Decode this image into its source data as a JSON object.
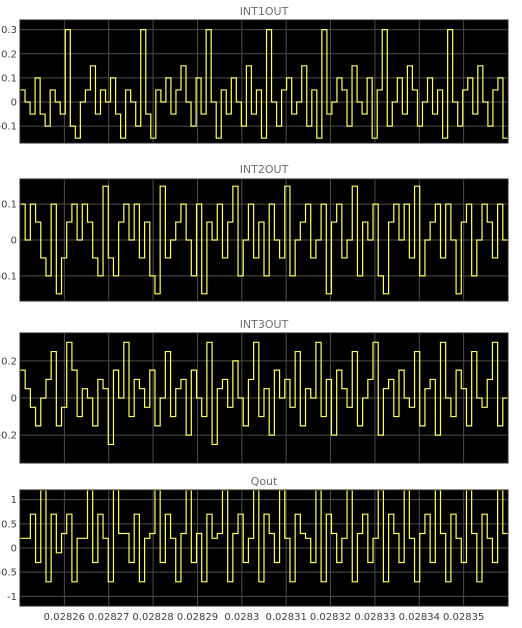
{
  "colors": {
    "background": "#ffffff",
    "plot_background": "#000000",
    "grid": "#4d4d4d",
    "signal": "#ffff66",
    "title": "#6e6e6e",
    "tick_label": "#404040"
  },
  "chart_data": [
    {
      "type": "line",
      "step": true,
      "title": "INT1OUT",
      "xlim": [
        0.02825,
        0.02836
      ],
      "ylim": [
        -0.17,
        0.34
      ],
      "yticks": [
        -0.1,
        0,
        0.1,
        0.2,
        0.3
      ],
      "ytick_labels": [
        "-0.1",
        "0",
        "0.1",
        "0.2",
        "0.3"
      ],
      "grid": true,
      "series": [
        {
          "y": [
            0.05,
            0.0,
            -0.05,
            0.1,
            -0.05,
            -0.1,
            0.05,
            0.0,
            -0.05,
            0.3,
            -0.1,
            -0.15,
            0.0,
            0.05,
            0.15,
            -0.05,
            0.05,
            0.0,
            0.1,
            -0.05,
            -0.15,
            0.05,
            0.0,
            -0.1,
            0.3,
            -0.05,
            -0.15,
            0.05,
            0.0,
            0.1,
            -0.05,
            0.05,
            0.15,
            0.0,
            -0.1,
            0.1,
            -0.05,
            0.3,
            0.0,
            -0.15,
            0.05,
            -0.05,
            0.1,
            0.0,
            -0.1,
            0.15,
            -0.05,
            0.05,
            -0.15,
            0.3,
            0.0,
            -0.1,
            0.05,
            0.1,
            -0.05,
            0.0,
            0.15,
            -0.1,
            0.05,
            -0.15,
            0.3,
            -0.05,
            0.0,
            0.1,
            0.05,
            -0.1,
            0.15,
            0.0,
            -0.05,
            0.1,
            -0.15,
            0.05,
            0.3,
            -0.1,
            0.0,
            0.1,
            -0.05,
            0.15,
            0.05,
            -0.1,
            0.0,
            0.1,
            -0.05,
            0.05,
            -0.15,
            0.3,
            0.0,
            -0.1,
            0.05,
            0.1,
            -0.05,
            0.15,
            0.0,
            -0.1,
            0.05,
            0.1,
            -0.15
          ]
        }
      ]
    },
    {
      "type": "line",
      "step": true,
      "title": "INT2OUT",
      "xlim": [
        0.02825,
        0.02836
      ],
      "ylim": [
        -0.17,
        0.17
      ],
      "yticks": [
        -0.1,
        0,
        0.1
      ],
      "ytick_labels": [
        "-0.1",
        "0",
        "0.1"
      ],
      "grid": true,
      "series": [
        {
          "y": [
            0.1,
            0.0,
            0.1,
            0.05,
            -0.05,
            -0.1,
            0.1,
            -0.15,
            -0.05,
            0.05,
            0.1,
            0.0,
            0.1,
            0.05,
            -0.05,
            -0.1,
            0.15,
            -0.05,
            -0.1,
            0.05,
            0.1,
            0.0,
            0.1,
            -0.05,
            0.05,
            -0.1,
            -0.15,
            0.15,
            -0.05,
            0.0,
            0.05,
            0.1,
            0.0,
            -0.1,
            0.1,
            -0.15,
            0.05,
            0.0,
            0.1,
            -0.05,
            0.05,
            0.15,
            -0.1,
            0.0,
            0.1,
            -0.05,
            0.05,
            -0.1,
            0.1,
            0.0,
            -0.05,
            0.15,
            -0.1,
            0.0,
            0.05,
            0.1,
            -0.05,
            0.0,
            0.1,
            -0.15,
            0.05,
            0.1,
            -0.05,
            0.0,
            0.15,
            -0.1,
            0.05,
            0.0,
            0.1,
            -0.1,
            -0.15,
            0.05,
            0.1,
            0.0,
            0.1,
            -0.05,
            0.15,
            -0.1,
            0.0,
            0.05,
            0.1,
            -0.05,
            0.1,
            0.0,
            -0.15,
            0.05,
            0.1,
            -0.1,
            0.0,
            0.1,
            0.05,
            -0.05,
            0.1,
            0.0
          ]
        }
      ]
    },
    {
      "type": "line",
      "step": true,
      "title": "INT3OUT",
      "xlim": [
        0.02825,
        0.02836
      ],
      "ylim": [
        -0.35,
        0.35
      ],
      "yticks": [
        -0.2,
        0,
        0.2
      ],
      "ytick_labels": [
        "-0.2",
        "0",
        "0.2"
      ],
      "grid": true,
      "series": [
        {
          "y": [
            0.15,
            0.05,
            -0.05,
            -0.15,
            0.0,
            0.1,
            0.25,
            -0.15,
            -0.05,
            0.3,
            0.15,
            -0.1,
            0.05,
            0.0,
            -0.15,
            0.1,
            0.05,
            -0.25,
            0.15,
            0.0,
            0.3,
            -0.1,
            0.1,
            0.05,
            -0.05,
            0.15,
            -0.15,
            0.0,
            0.25,
            -0.1,
            0.05,
            0.1,
            -0.2,
            0.15,
            0.0,
            -0.1,
            0.3,
            -0.25,
            0.05,
            0.1,
            -0.05,
            0.2,
            0.0,
            -0.15,
            0.1,
            0.3,
            -0.1,
            0.05,
            -0.2,
            0.15,
            0.0,
            0.1,
            -0.05,
            0.25,
            -0.15,
            0.05,
            0.0,
            0.3,
            -0.1,
            0.1,
            -0.2,
            0.15,
            0.05,
            -0.05,
            0.25,
            -0.15,
            0.0,
            0.1,
            0.3,
            -0.2,
            0.05,
            0.1,
            -0.1,
            0.15,
            0.0,
            -0.05,
            0.25,
            -0.15,
            0.05,
            0.1,
            -0.2,
            0.3,
            0.0,
            -0.1,
            0.15,
            0.05,
            -0.15,
            0.25,
            0.0,
            -0.05,
            0.1,
            0.3,
            -0.15,
            0.0
          ]
        }
      ]
    },
    {
      "type": "line",
      "step": true,
      "title": "Qout",
      "xlim": [
        0.02825,
        0.02836
      ],
      "ylim": [
        -1.2,
        1.2
      ],
      "yticks": [
        -1,
        -0.5,
        0,
        0.5,
        1
      ],
      "ytick_labels": [
        "-1",
        "-0.5",
        "0",
        "0.5",
        "1"
      ],
      "grid": true,
      "xticks": [
        0.02826,
        0.02827,
        0.02828,
        0.02829,
        0.0283,
        0.02831,
        0.02832,
        0.02833,
        0.02834,
        0.02835
      ],
      "xtick_labels": [
        "0.02826",
        "0.02827",
        "0.02828",
        "0.02829",
        "0.0283",
        "0.02831",
        "0.02832",
        "0.02833",
        "0.02834",
        "0.02835"
      ],
      "series": [
        {
          "y": [
            0.2,
            0.2,
            0.7,
            -0.3,
            1.2,
            -0.7,
            0.7,
            -0.1,
            0.3,
            0.7,
            -0.7,
            0.2,
            0.2,
            1.2,
            -0.3,
            0.7,
            0.2,
            -0.7,
            1.2,
            0.3,
            0.3,
            -0.3,
            0.7,
            -0.7,
            0.2,
            0.3,
            1.2,
            -0.3,
            0.7,
            0.2,
            -0.7,
            0.3,
            1.2,
            -0.3,
            0.3,
            -0.7,
            0.7,
            0.2,
            0.3,
            1.2,
            -0.7,
            0.3,
            0.7,
            -0.3,
            0.2,
            1.2,
            -0.7,
            0.7,
            0.3,
            -0.3,
            1.2,
            0.2,
            -0.7,
            0.7,
            0.3,
            0.2,
            -0.3,
            1.2,
            -0.7,
            0.7,
            0.3,
            -0.3,
            0.2,
            1.2,
            -0.7,
            0.3,
            0.7,
            -0.3,
            0.2,
            1.2,
            -0.7,
            0.7,
            0.3,
            -0.3,
            1.2,
            0.2,
            -0.7,
            0.3,
            0.7,
            -0.3,
            1.2,
            0.3,
            -0.7,
            0.7,
            0.2,
            -0.3,
            1.2,
            0.3,
            -0.7,
            0.7,
            0.2,
            -0.3,
            1.2,
            0.3
          ]
        }
      ]
    }
  ]
}
